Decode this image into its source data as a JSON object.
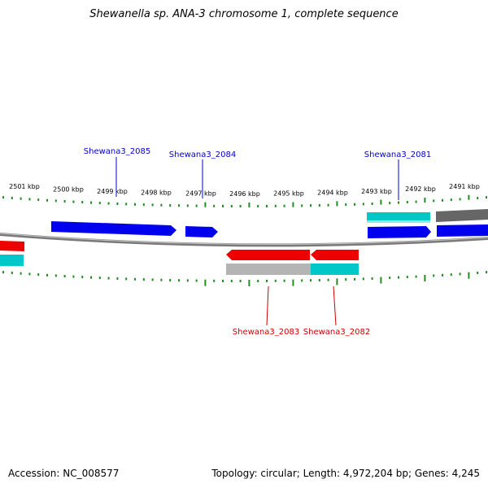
{
  "title": "Shewanella sp. ANA-3 chromosome 1, complete sequence",
  "footer": {
    "accession": "Accession: NC_008577",
    "summary": "Topology: circular; Length: 4,972,204 bp; Genes: 4,245"
  },
  "ticks": [
    "2501 kbp",
    "2500 kbp",
    "2499 kbp",
    "2498 kbp",
    "2497 kbp",
    "2496 kbp",
    "2495 kbp",
    "2494 kbp",
    "2493 kbp",
    "2492 kbp",
    "2491 kbp"
  ],
  "genes_top": [
    {
      "id": "Shewana3_2085"
    },
    {
      "id": "Shewana3_2084"
    },
    {
      "id": "Shewana3_2081"
    }
  ],
  "genes_bottom": [
    {
      "id": "Shewana3_2083"
    },
    {
      "id": "Shewana3_2082"
    }
  ],
  "colors": {
    "forward_cds": "#0000ee",
    "reverse_cds": "#ee0000",
    "cyan_feature": "#00c8c8",
    "grey_feature": "#b4b4b4",
    "dark_grey_feature": "#666666",
    "backbone": "#888888",
    "ticks": "#228b22",
    "label_top": "#0000cc",
    "label_bottom": "#cc0000"
  }
}
